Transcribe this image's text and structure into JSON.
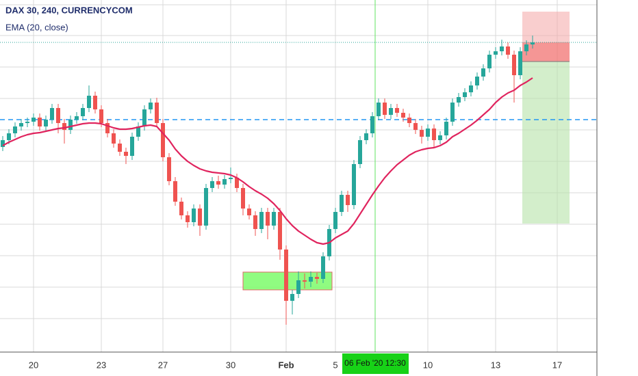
{
  "chart_data": {
    "type": "candlestick",
    "title": "DAX 30, 240, CURRENCYCOM",
    "subtitle": "EMA (20, close)",
    "crosshair_label": "06 Feb '20   12:30",
    "categories": [
      null,
      null,
      null,
      null,
      null,
      "20",
      null,
      null,
      null,
      null,
      null,
      null,
      null,
      null,
      null,
      null,
      "23",
      null,
      null,
      null,
      null,
      null,
      null,
      null,
      null,
      null,
      "27",
      null,
      null,
      null,
      null,
      null,
      null,
      null,
      null,
      null,
      null,
      "30",
      null,
      null,
      null,
      null,
      null,
      null,
      null,
      null,
      "Feb",
      null,
      null,
      null,
      null,
      null,
      null,
      null,
      "5",
      null,
      null,
      null,
      null,
      null,
      null,
      null,
      null,
      null,
      null,
      null,
      null,
      null,
      null,
      "10",
      null,
      null,
      null,
      null,
      null,
      null,
      null,
      null,
      null,
      null,
      "13",
      null,
      null,
      null,
      null,
      null,
      null,
      null,
      null,
      null,
      "17"
    ],
    "open": [
      300,
      310,
      320,
      330,
      335,
      337,
      343,
      330,
      340,
      357,
      335,
      325,
      340,
      345,
      357,
      375,
      355,
      335,
      320,
      305,
      293,
      287,
      315,
      330,
      355,
      365,
      335,
      285,
      250,
      220,
      200,
      190,
      210,
      185,
      240,
      250,
      245,
      253,
      255,
      240,
      210,
      200,
      180,
      205,
      185,
      205,
      150,
      75,
      85,
      105,
      103,
      110,
      107,
      140,
      180,
      205,
      230,
      215,
      275,
      310,
      320,
      345,
      365,
      347,
      357,
      350,
      343,
      335,
      325,
      315,
      327,
      310,
      317,
      337,
      365,
      373,
      380,
      390,
      403,
      415,
      435,
      440,
      447,
      435,
      405,
      440,
      450,
      null,
      null,
      null,
      null
    ],
    "high": [
      316,
      326,
      336,
      341,
      343,
      349,
      349,
      346,
      363,
      363,
      341,
      346,
      351,
      363,
      390,
      381,
      361,
      341,
      326,
      311,
      299,
      321,
      336,
      361,
      371,
      372,
      341,
      291,
      256,
      226,
      206,
      216,
      216,
      246,
      256,
      258,
      259,
      270,
      261,
      246,
      216,
      206,
      211,
      211,
      211,
      211,
      156,
      91,
      118,
      115,
      118,
      116,
      146,
      186,
      211,
      236,
      236,
      281,
      316,
      326,
      351,
      371,
      371,
      363,
      363,
      356,
      349,
      341,
      331,
      333,
      333,
      323,
      343,
      371,
      379,
      386,
      396,
      409,
      421,
      441,
      446,
      457,
      453,
      441,
      446,
      456,
      463,
      null,
      null,
      null,
      null
    ],
    "low": [
      294,
      304,
      314,
      324,
      329,
      331,
      324,
      324,
      334,
      320,
      305,
      319,
      334,
      339,
      351,
      349,
      329,
      314,
      299,
      287,
      275,
      281,
      309,
      324,
      349,
      329,
      279,
      244,
      214,
      194,
      182,
      184,
      170,
      179,
      234,
      239,
      239,
      247,
      234,
      200,
      194,
      170,
      174,
      165,
      179,
      135,
      40,
      55,
      79,
      93,
      95,
      100,
      101,
      134,
      174,
      199,
      205,
      209,
      269,
      304,
      314,
      339,
      341,
      341,
      344,
      337,
      329,
      319,
      305,
      309,
      300,
      304,
      311,
      331,
      359,
      367,
      374,
      384,
      397,
      409,
      429,
      434,
      429,
      365,
      399,
      434,
      444,
      null,
      null,
      null,
      null
    ],
    "close": [
      310,
      320,
      330,
      335,
      337,
      343,
      330,
      340,
      357,
      335,
      325,
      340,
      345,
      357,
      375,
      355,
      335,
      320,
      305,
      293,
      287,
      315,
      330,
      355,
      365,
      335,
      285,
      250,
      220,
      200,
      190,
      210,
      185,
      240,
      250,
      245,
      253,
      255,
      240,
      210,
      200,
      180,
      205,
      185,
      205,
      150,
      75,
      85,
      105,
      103,
      110,
      107,
      140,
      180,
      205,
      230,
      215,
      275,
      310,
      320,
      345,
      365,
      347,
      357,
      350,
      343,
      335,
      325,
      315,
      327,
      310,
      317,
      337,
      365,
      373,
      380,
      390,
      403,
      415,
      435,
      440,
      447,
      435,
      405,
      440,
      450,
      453,
      null,
      null,
      null,
      null
    ],
    "ema": [
      302,
      307,
      311,
      315,
      318,
      320,
      321,
      323,
      325,
      327,
      328,
      330,
      332,
      334,
      335,
      335,
      334,
      331,
      328,
      326,
      326,
      327,
      329,
      331,
      332,
      330,
      320,
      310,
      297,
      287,
      279,
      273,
      268,
      265,
      263,
      262,
      261,
      259,
      255,
      249,
      242,
      236,
      231,
      225,
      217,
      207,
      195,
      185,
      177,
      171,
      165,
      160,
      158,
      160,
      167,
      172,
      177,
      188,
      202,
      216,
      230,
      243,
      255,
      265,
      274,
      281,
      288,
      293,
      296,
      298,
      299,
      302,
      307,
      315,
      320,
      326,
      332,
      339,
      347,
      355,
      365,
      373,
      379,
      383,
      390,
      395,
      401,
      null,
      null,
      null,
      null
    ],
    "up_color": "#26a69a",
    "down_color": "#ef5350",
    "ema_color": "#e0245e",
    "ylim": [
      0,
      515
    ]
  }
}
